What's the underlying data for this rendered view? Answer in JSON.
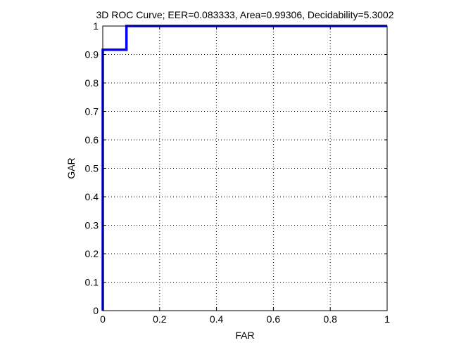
{
  "chart_data": {
    "type": "line",
    "title": "3D ROC Curve;   EER=0.083333,   Area=0.99306,   Decidability=5.3002",
    "xlabel": "FAR",
    "ylabel": "GAR",
    "xlim": [
      0,
      1
    ],
    "ylim": [
      0,
      1
    ],
    "xticks": [
      0,
      0.2,
      0.4,
      0.6,
      0.8,
      1
    ],
    "yticks": [
      0,
      0.1,
      0.2,
      0.3,
      0.4,
      0.5,
      0.6,
      0.7,
      0.8,
      0.9,
      1
    ],
    "xtick_labels": [
      "0",
      "0.2",
      "0.4",
      "0.6",
      "0.8",
      "1"
    ],
    "ytick_labels": [
      "0",
      "0.1",
      "0.2",
      "0.3",
      "0.4",
      "0.5",
      "0.6",
      "0.7",
      "0.8",
      "0.9",
      "1"
    ],
    "grid": true,
    "grid_style": "dotted",
    "series": [
      {
        "color": "#0000ff",
        "x": [
          0,
          0,
          0.083333,
          0.083333,
          1
        ],
        "y": [
          0,
          0.916667,
          0.916667,
          1,
          1
        ]
      }
    ]
  }
}
